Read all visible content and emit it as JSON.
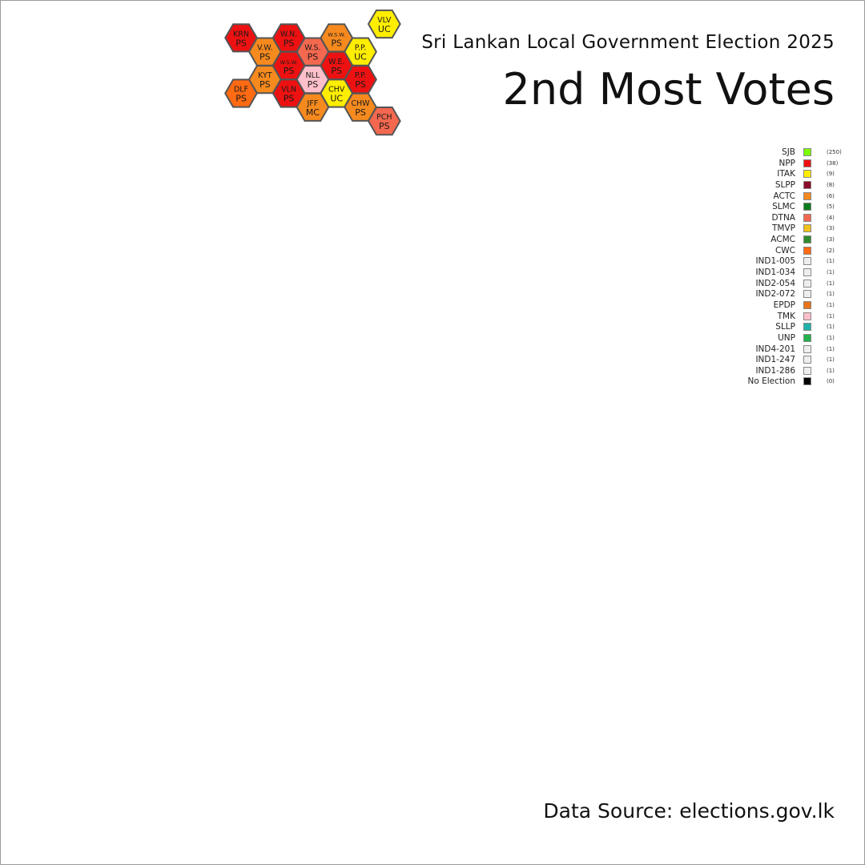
{
  "title": "Sri Lankan Local Government Election 2025",
  "subtitle": "2nd Most Votes",
  "source": "Data Source: elections.gov.lk",
  "legend": [
    {
      "name": "SJB",
      "color": "#7CFC00",
      "count": "(250)"
    },
    {
      "name": "NPP",
      "color": "#EE1111",
      "count": "(38)"
    },
    {
      "name": "ITAK",
      "color": "#FFEE00",
      "count": "(9)"
    },
    {
      "name": "SLPP",
      "color": "#8B0A2A",
      "count": "(8)"
    },
    {
      "name": "ACTC",
      "color": "#F68A1E",
      "count": "(6)"
    },
    {
      "name": "SLMC",
      "color": "#0E7A1E",
      "count": "(5)"
    },
    {
      "name": "DTNA",
      "color": "#F4684F",
      "count": "(4)"
    },
    {
      "name": "TMVP",
      "color": "#F3C21C",
      "count": "(3)"
    },
    {
      "name": "ACMC",
      "color": "#2E8B2E",
      "count": "(3)"
    },
    {
      "name": "CWC",
      "color": "#FF6A13",
      "count": "(2)"
    },
    {
      "name": "IND1-005",
      "color": "#EEEEEE",
      "count": "(1)"
    },
    {
      "name": "IND1-034",
      "color": "#EEEEEE",
      "count": "(1)"
    },
    {
      "name": "IND2-054",
      "color": "#EEEEEE",
      "count": "(1)"
    },
    {
      "name": "IND2-072",
      "color": "#EEEEEE",
      "count": "(1)"
    },
    {
      "name": "EPDP",
      "color": "#E8731A",
      "count": "(1)"
    },
    {
      "name": "TMK",
      "color": "#FFC0CB",
      "count": "(1)"
    },
    {
      "name": "SLLP",
      "color": "#20B2AA",
      "count": "(1)"
    },
    {
      "name": "UNP",
      "color": "#22B14C",
      "count": "(1)"
    },
    {
      "name": "IND4-201",
      "color": "#EEEEEE",
      "count": "(1)"
    },
    {
      "name": "IND1-247",
      "color": "#EEEEEE",
      "count": "(1)"
    },
    {
      "name": "IND1-286",
      "color": "#EEEEEE",
      "count": "(1)"
    },
    {
      "name": "No Election",
      "color": "#000000",
      "count": "(0)"
    }
  ],
  "hexes": [
    {
      "code": "VLV",
      "type": "UC",
      "party": "ITAK",
      "c": 6,
      "r": 0
    },
    {
      "code": "KRN",
      "type": "PS",
      "party": "NPP",
      "c": 0,
      "r": 1
    },
    {
      "code": "W.N.",
      "type": "PS",
      "party": "NPP",
      "c": 2,
      "r": 1
    },
    {
      "code": "W.S.W.",
      "type": "PS",
      "party": "ACTC",
      "c": 4,
      "r": 1
    },
    {
      "code": "V.W.",
      "type": "PS",
      "party": "ACTC",
      "c": 1,
      "r": 2
    },
    {
      "code": "W.S.",
      "type": "PS",
      "party": "DTNA",
      "c": 3,
      "r": 2
    },
    {
      "code": "P.P.",
      "type": "UC",
      "party": "ITAK",
      "c": 5,
      "r": 2
    },
    {
      "code": "W.S.W.",
      "type": "PS",
      "party": "NPP",
      "c": 2,
      "r": 3
    },
    {
      "code": "W.E.",
      "type": "PS",
      "party": "NPP",
      "c": 4,
      "r": 3
    },
    {
      "code": "KYT",
      "type": "PS",
      "party": "ACTC",
      "c": 1,
      "r": 4
    },
    {
      "code": "NLL",
      "type": "PS",
      "party": "TMK",
      "c": 3,
      "r": 4
    },
    {
      "code": "P.P.",
      "type": "PS",
      "party": "NPP",
      "c": 5,
      "r": 4
    },
    {
      "code": "DLF",
      "type": "PS",
      "party": "CWC",
      "c": 0,
      "r": 5
    },
    {
      "code": "VLN",
      "type": "PS",
      "party": "NPP",
      "c": 2,
      "r": 5
    },
    {
      "code": "CHV",
      "type": "UC",
      "party": "ITAK",
      "c": 4,
      "r": 5
    },
    {
      "code": "JFF",
      "type": "MC",
      "party": "ACTC",
      "c": 3,
      "r": 6
    },
    {
      "code": "CHW",
      "type": "PS",
      "party": "ACTC",
      "c": 5,
      "r": 6
    },
    {
      "code": "PCH",
      "type": "PS",
      "party": "DTNA",
      "c": 6,
      "r": 7
    }
  ]
}
